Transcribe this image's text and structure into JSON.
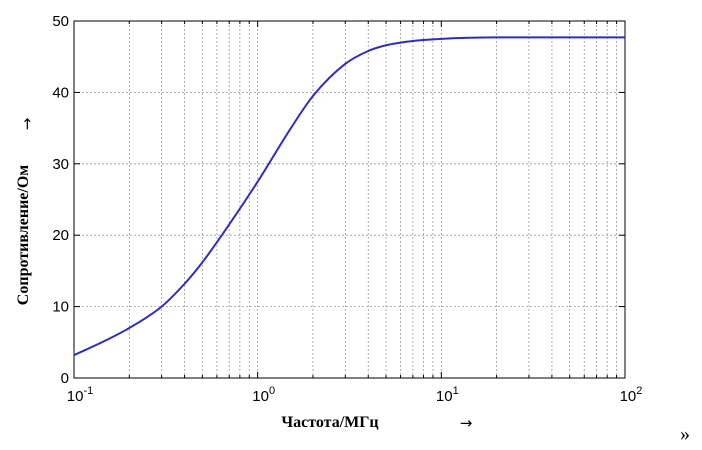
{
  "chart_data": {
    "type": "line",
    "xlabel": "Частота/МГц",
    "ylabel": "Сопротивление/Ом",
    "x_arrow": "→",
    "y_arrow": "→",
    "x_scale": "log",
    "xlim": [
      0.1,
      100
    ],
    "ylim": [
      0,
      50
    ],
    "x_ticks": [
      {
        "value": 0.1,
        "base": "10",
        "exp": "-1"
      },
      {
        "value": 1,
        "base": "10",
        "exp": "0"
      },
      {
        "value": 10,
        "base": "10",
        "exp": "1"
      },
      {
        "value": 100,
        "base": "10",
        "exp": "2"
      }
    ],
    "y_ticks": [
      0,
      10,
      20,
      30,
      40,
      50
    ],
    "grid": true,
    "line_color": "#2e2eb8",
    "series": [
      {
        "x": [
          0.1,
          0.15,
          0.2,
          0.3,
          0.4,
          0.5,
          0.7,
          1,
          1.5,
          2,
          3,
          4,
          5,
          7,
          10,
          20,
          50,
          100
        ],
        "y": [
          3.2,
          5.3,
          7.0,
          10.0,
          13.2,
          16.2,
          21.5,
          27.5,
          34.8,
          39.5,
          44.0,
          45.8,
          46.6,
          47.2,
          47.5,
          47.7,
          47.7,
          47.7
        ]
      }
    ]
  },
  "corner_mark": "»"
}
